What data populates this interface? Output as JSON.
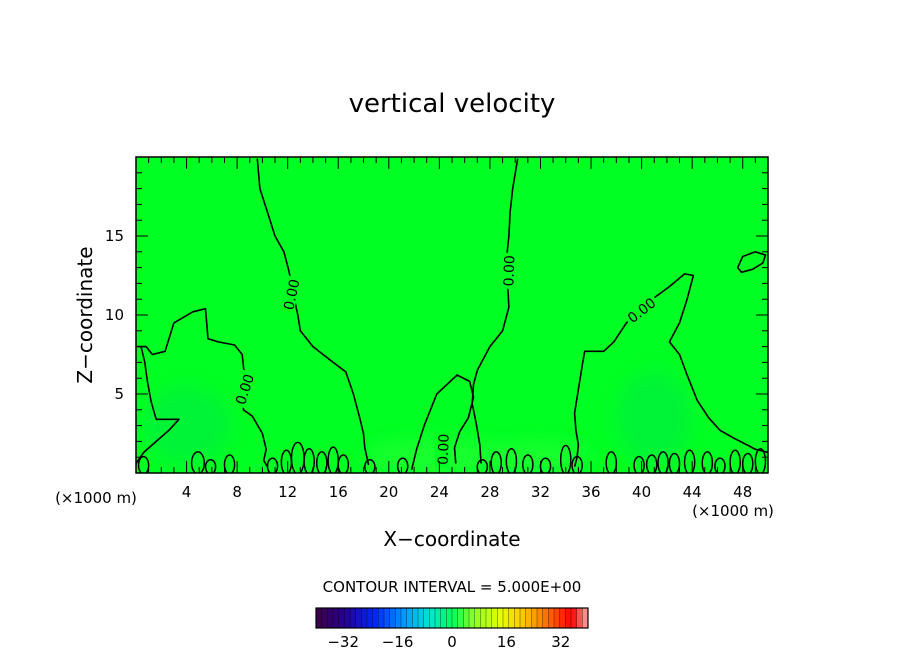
{
  "chart_data": {
    "type": "contour",
    "title": "vertical velocity",
    "xlabel": "X−coordinate",
    "ylabel": "Z−coordinate",
    "x_unit_left": "(×1000 m)",
    "x_unit_right": "(×1000 m)",
    "xlim": [
      0,
      50
    ],
    "ylim": [
      0,
      20
    ],
    "x_ticks": [
      4,
      8,
      12,
      16,
      20,
      24,
      28,
      32,
      36,
      40,
      44,
      48
    ],
    "y_ticks": [
      5,
      10,
      15
    ],
    "contour_label": "0.00",
    "contour_interval_text": "CONTOUR INTERVAL = 5.000E+00",
    "colorbar": {
      "range": [
        -40,
        40
      ],
      "ticks": [
        -32,
        -16,
        0,
        16,
        32
      ],
      "tick_labels": [
        "−32",
        "−16",
        "0",
        "16",
        "32"
      ]
    },
    "colors": {
      "field": "#00ff22",
      "field_weak_updraft": "#22ff33",
      "field_weak_downdraft": "#00f040",
      "contour": "#000000"
    },
    "zero_contours": [
      {
        "name": "left-plume-boundary",
        "points": [
          [
            0,
            8
          ],
          [
            0.8,
            8
          ],
          [
            1.3,
            7.5
          ],
          [
            2.3,
            7.7
          ],
          [
            3,
            9.5
          ],
          [
            4.5,
            10.2
          ],
          [
            5.5,
            10.4
          ],
          [
            5.7,
            8.5
          ],
          [
            6.5,
            8.3
          ],
          [
            7.8,
            8.1
          ],
          [
            8.4,
            7.5
          ],
          [
            8.6,
            6
          ],
          [
            8.5,
            4
          ],
          [
            9.2,
            3.6
          ],
          [
            10,
            2.5
          ],
          [
            10.3,
            1.5
          ],
          [
            10.1,
            0.8
          ],
          [
            10.4,
            0.4
          ]
        ]
      },
      {
        "name": "left-plume-lower",
        "points": [
          [
            0,
            0.6
          ],
          [
            0.6,
            1.3
          ],
          [
            1.6,
            2
          ],
          [
            2.6,
            2.7
          ],
          [
            3.4,
            3.4
          ],
          [
            1.6,
            3.4
          ],
          [
            1.2,
            4.5
          ],
          [
            0.9,
            5.8
          ],
          [
            0.7,
            7
          ],
          [
            0.4,
            8
          ]
        ]
      },
      {
        "name": "west-column",
        "points": [
          [
            9.6,
            19.9
          ],
          [
            9.8,
            18
          ],
          [
            10.4,
            16.5
          ],
          [
            11,
            15
          ],
          [
            11.7,
            14
          ],
          [
            12.1,
            12.8
          ],
          [
            12.4,
            11.5
          ],
          [
            12.8,
            10
          ],
          [
            13,
            9
          ],
          [
            14,
            8
          ],
          [
            15.6,
            7
          ],
          [
            16.6,
            6.4
          ],
          [
            17.2,
            5
          ],
          [
            17.7,
            3.5
          ],
          [
            18,
            2.5
          ],
          [
            18.1,
            1.6
          ],
          [
            18.4,
            0.5
          ]
        ]
      },
      {
        "name": "east-column",
        "points": [
          [
            30.2,
            19.9
          ],
          [
            29.8,
            18
          ],
          [
            29.6,
            16.5
          ],
          [
            29.5,
            15
          ],
          [
            29.3,
            13.5
          ],
          [
            29.4,
            12
          ],
          [
            29.5,
            10.5
          ],
          [
            29,
            9
          ],
          [
            28,
            8
          ],
          [
            27,
            6.5
          ],
          [
            26.7,
            5.6
          ],
          [
            26.6,
            4.4
          ],
          [
            26.9,
            3.2
          ],
          [
            27.2,
            1.8
          ],
          [
            27.3,
            0.6
          ]
        ]
      },
      {
        "name": "central-thermal",
        "points": [
          [
            21.8,
            0.2
          ],
          [
            22.2,
            1.5
          ],
          [
            22.8,
            3
          ],
          [
            23.8,
            5
          ],
          [
            25.4,
            6.2
          ],
          [
            26.4,
            5.8
          ],
          [
            26.7,
            4.8
          ],
          [
            26.3,
            3.5
          ],
          [
            25.6,
            2.6
          ],
          [
            25.2,
            1.6
          ],
          [
            25.3,
            0.6
          ]
        ]
      },
      {
        "name": "east-plume-boundary",
        "points": [
          [
            34.7,
            0.4
          ],
          [
            34.9,
            1
          ],
          [
            35,
            1.8
          ],
          [
            34.8,
            2.7
          ],
          [
            34.7,
            3.8
          ],
          [
            35,
            5.3
          ],
          [
            35.3,
            6.8
          ],
          [
            35.5,
            7.7
          ],
          [
            37,
            7.7
          ],
          [
            37.8,
            8.3
          ],
          [
            38.8,
            9.5
          ],
          [
            40.5,
            10.8
          ],
          [
            42.2,
            11.8
          ],
          [
            43.4,
            12.6
          ],
          [
            44.1,
            12.5
          ],
          [
            43.6,
            11
          ],
          [
            43,
            9.5
          ],
          [
            42.2,
            8.3
          ],
          [
            43,
            7.5
          ],
          [
            43.6,
            6.2
          ],
          [
            44.4,
            4.6
          ],
          [
            45.3,
            3.5
          ],
          [
            46.2,
            2.7
          ],
          [
            47.3,
            2.2
          ],
          [
            48.3,
            1.8
          ],
          [
            49,
            1.5
          ],
          [
            50,
            1.3
          ]
        ]
      },
      {
        "name": "northeast-eddy",
        "points": [
          [
            47.6,
            13
          ],
          [
            48,
            13.7
          ],
          [
            49,
            14
          ],
          [
            49.8,
            13.8
          ],
          [
            49.6,
            13.3
          ],
          [
            48.8,
            12.9
          ],
          [
            47.9,
            12.7
          ],
          [
            47.6,
            13
          ]
        ],
        "closed": true
      }
    ],
    "surface_cells": [
      [
        0.6,
        0.4,
        1.1
      ],
      [
        4.9,
        0.5,
        1.4
      ],
      [
        5.9,
        0.4,
        0.9
      ],
      [
        7.4,
        0.4,
        1.2
      ],
      [
        10.8,
        0.4,
        1.0
      ],
      [
        11.9,
        0.4,
        1.5
      ],
      [
        12.8,
        0.5,
        2.0
      ],
      [
        13.7,
        0.4,
        1.6
      ],
      [
        14.7,
        0.4,
        1.4
      ],
      [
        15.6,
        0.4,
        1.7
      ],
      [
        16.4,
        0.4,
        1.2
      ],
      [
        18.5,
        0.4,
        0.9
      ],
      [
        21.1,
        0.4,
        1.0
      ],
      [
        27.4,
        0.4,
        0.9
      ],
      [
        28.5,
        0.4,
        1.4
      ],
      [
        29.7,
        0.4,
        1.6
      ],
      [
        31.0,
        0.4,
        1.2
      ],
      [
        32.4,
        0.4,
        1.0
      ],
      [
        34.0,
        0.4,
        1.8
      ],
      [
        34.9,
        0.4,
        1.1
      ],
      [
        37.6,
        0.4,
        1.4
      ],
      [
        39.8,
        0.4,
        1.1
      ],
      [
        40.8,
        0.4,
        1.2
      ],
      [
        41.7,
        0.4,
        1.4
      ],
      [
        42.6,
        0.4,
        1.3
      ],
      [
        43.8,
        0.4,
        1.5
      ],
      [
        45.2,
        0.4,
        1.4
      ],
      [
        46.2,
        0.4,
        1.0
      ],
      [
        47.4,
        0.4,
        1.5
      ],
      [
        48.4,
        0.4,
        1.3
      ],
      [
        49.4,
        0.4,
        1.6
      ]
    ],
    "inline_labels": [
      {
        "x": 8.6,
        "y": 5.3,
        "angle": -72
      },
      {
        "x": 12.3,
        "y": 11.3,
        "angle": -78
      },
      {
        "x": 29.5,
        "y": 12.8,
        "angle": -88
      },
      {
        "x": 40.0,
        "y": 10.3,
        "angle": -38
      },
      {
        "x": 24.3,
        "y": 1.5,
        "angle": -88
      }
    ]
  }
}
